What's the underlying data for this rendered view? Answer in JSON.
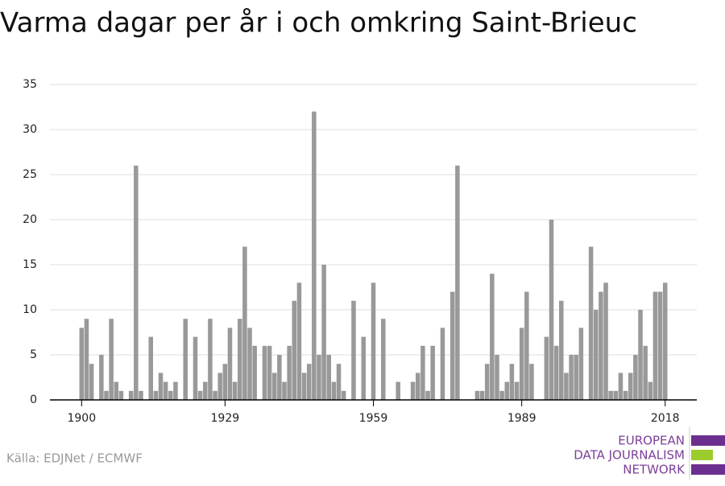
{
  "chart_data": {
    "type": "bar",
    "title": "Varma dagar per år i och omkring Saint-Brieuc",
    "source": "Källa: EDJNet / ECMWF",
    "logo": [
      "EUROPEAN",
      "DATA JOURNALISM",
      "NETWORK"
    ],
    "color": "#999999",
    "grid": true,
    "x": [
      1900,
      1901,
      1902,
      1903,
      1904,
      1905,
      1906,
      1907,
      1908,
      1909,
      1910,
      1911,
      1912,
      1913,
      1914,
      1915,
      1916,
      1917,
      1918,
      1919,
      1920,
      1921,
      1922,
      1923,
      1924,
      1925,
      1926,
      1927,
      1928,
      1929,
      1930,
      1931,
      1932,
      1933,
      1934,
      1935,
      1936,
      1937,
      1938,
      1939,
      1940,
      1941,
      1942,
      1943,
      1944,
      1945,
      1946,
      1947,
      1948,
      1949,
      1950,
      1951,
      1952,
      1953,
      1954,
      1955,
      1956,
      1957,
      1958,
      1959,
      1960,
      1961,
      1962,
      1963,
      1964,
      1965,
      1966,
      1967,
      1968,
      1969,
      1970,
      1971,
      1972,
      1973,
      1974,
      1975,
      1976,
      1977,
      1978,
      1979,
      1980,
      1981,
      1982,
      1983,
      1984,
      1985,
      1986,
      1987,
      1988,
      1989,
      1990,
      1991,
      1992,
      1993,
      1994,
      1995,
      1996,
      1997,
      1998,
      1999,
      2000,
      2001,
      2002,
      2003,
      2004,
      2005,
      2006,
      2007,
      2008,
      2009,
      2010,
      2011,
      2012,
      2013,
      2014,
      2015,
      2016,
      2017,
      2018
    ],
    "values": [
      8,
      9,
      4,
      0,
      5,
      1,
      9,
      2,
      1,
      0,
      1,
      26,
      1,
      0,
      7,
      1,
      3,
      2,
      1,
      2,
      0,
      9,
      0,
      7,
      1,
      2,
      9,
      1,
      3,
      4,
      8,
      2,
      9,
      17,
      8,
      6,
      0,
      6,
      6,
      3,
      5,
      2,
      6,
      11,
      13,
      3,
      4,
      32,
      5,
      15,
      5,
      2,
      4,
      1,
      0,
      11,
      0,
      7,
      0,
      13,
      0,
      9,
      0,
      0,
      2,
      0,
      0,
      2,
      3,
      6,
      1,
      6,
      0,
      8,
      0,
      12,
      26,
      0,
      0,
      0,
      1,
      1,
      4,
      14,
      5,
      1,
      2,
      4,
      2,
      8,
      12,
      4,
      0,
      0,
      7,
      20,
      6,
      11,
      3,
      5,
      5,
      8,
      0,
      17,
      10,
      12,
      13,
      1,
      1,
      3,
      1,
      3,
      5,
      10,
      6,
      2,
      12,
      12,
      13
    ],
    "xlim": [
      1893.6,
      2024.4
    ],
    "xticks": [
      1900,
      1929,
      1959,
      1989,
      2018
    ],
    "ylim": [
      0,
      35
    ],
    "yticks": [
      0,
      5,
      10,
      15,
      20,
      25,
      30,
      35
    ]
  }
}
